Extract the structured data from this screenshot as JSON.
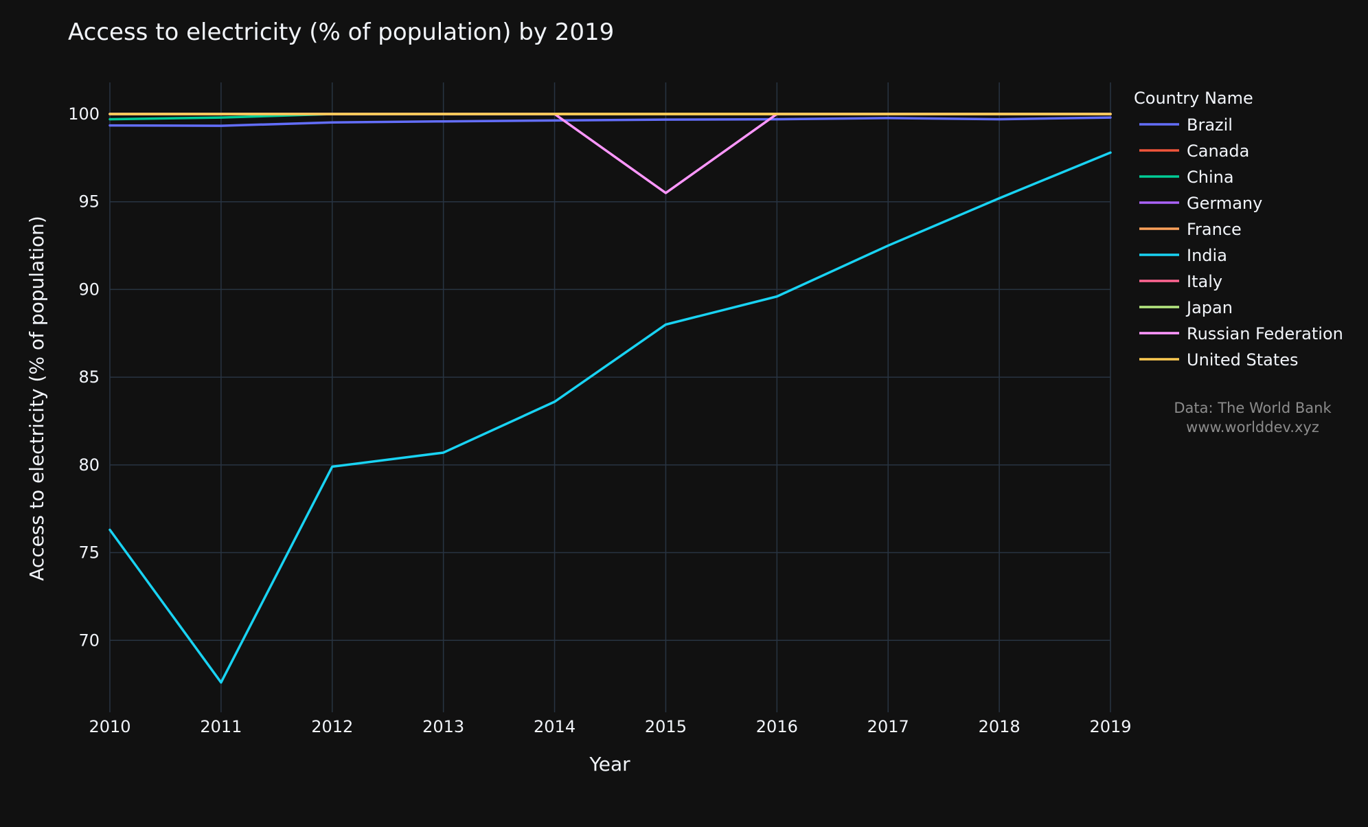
{
  "colors": {
    "background": "#111111",
    "grid": "#283442",
    "text": "#f2f5fa",
    "source_text": "#8c8c8c"
  },
  "chart_data": {
    "type": "line",
    "title": "Access to electricity (% of population) by 2019",
    "xlabel": "Year",
    "ylabel": "Access to electricity (% of population)",
    "x": [
      2010,
      2011,
      2012,
      2013,
      2014,
      2015,
      2016,
      2017,
      2018,
      2019
    ],
    "xlim": [
      2010,
      2019
    ],
    "ylim": [
      65.9,
      101.8
    ],
    "y_ticks": [
      70,
      75,
      80,
      85,
      90,
      95,
      100
    ],
    "grid": true,
    "legend_title": "Country Name",
    "legend_position": "right",
    "series": [
      {
        "name": "Brazil",
        "color": "#636efa",
        "values": [
          99.35,
          99.33,
          99.52,
          99.58,
          99.63,
          99.68,
          99.7,
          99.77,
          99.7,
          99.8
        ]
      },
      {
        "name": "Canada",
        "color": "#EF553B",
        "values": [
          100,
          100,
          100,
          100,
          100,
          100,
          100,
          100,
          100,
          100
        ]
      },
      {
        "name": "China",
        "color": "#00cc96",
        "values": [
          99.7,
          99.8,
          100,
          100,
          100,
          100,
          100,
          100,
          100,
          100
        ]
      },
      {
        "name": "Germany",
        "color": "#ab63fa",
        "values": [
          100,
          100,
          100,
          100,
          100,
          100,
          100,
          100,
          100,
          100
        ]
      },
      {
        "name": "France",
        "color": "#FFA15A",
        "values": [
          100,
          100,
          100,
          100,
          100,
          100,
          100,
          100,
          100,
          100
        ]
      },
      {
        "name": "India",
        "color": "#19d3f3",
        "values": [
          76.3,
          67.6,
          79.9,
          80.7,
          83.6,
          88.0,
          89.6,
          92.5,
          95.2,
          97.8
        ]
      },
      {
        "name": "Italy",
        "color": "#FF6692",
        "values": [
          100,
          100,
          100,
          100,
          100,
          100,
          100,
          100,
          100,
          100
        ]
      },
      {
        "name": "Japan",
        "color": "#B6E880",
        "values": [
          100,
          100,
          100,
          100,
          100,
          100,
          100,
          100,
          100,
          100
        ]
      },
      {
        "name": "Russian Federation",
        "color": "#FF97FF",
        "values": [
          100,
          100,
          100,
          100,
          100,
          95.5,
          100,
          100,
          100,
          100
        ]
      },
      {
        "name": "United States",
        "color": "#FECB52",
        "values": [
          100,
          100,
          100,
          100,
          100,
          100,
          100,
          100,
          100,
          100
        ]
      }
    ],
    "annotations": [
      "Data: The World Bank",
      "www.worlddev.xyz"
    ]
  }
}
